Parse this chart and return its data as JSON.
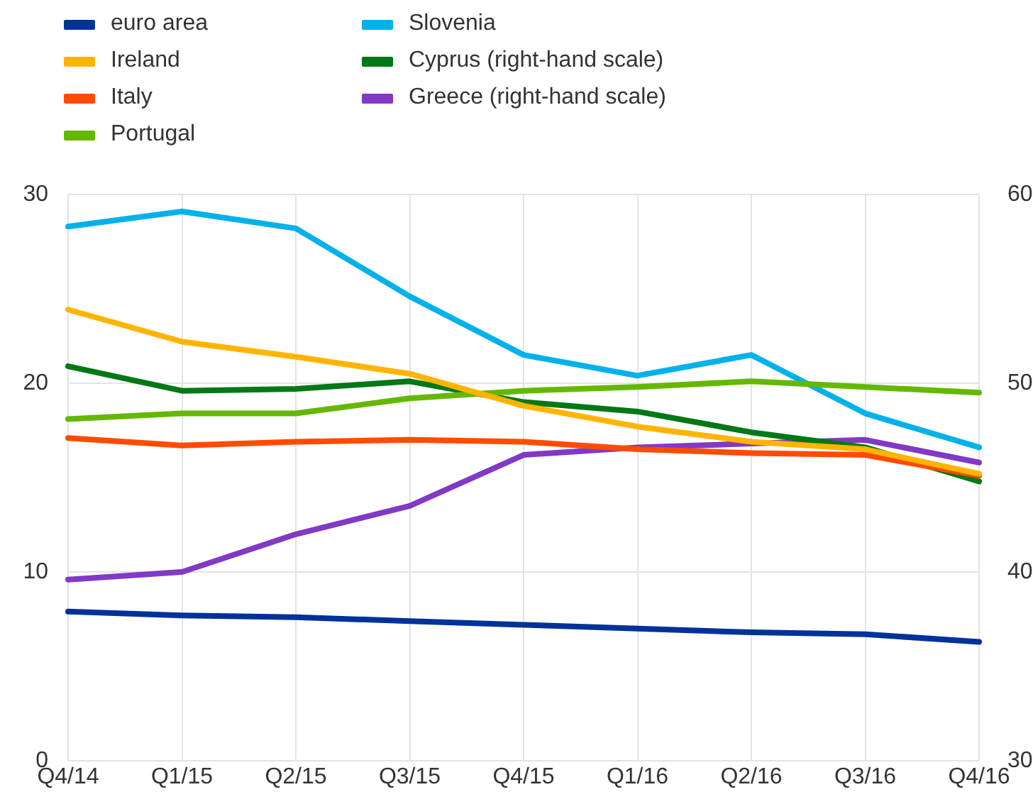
{
  "chart_data": {
    "type": "line",
    "categories": [
      "Q4/14",
      "Q1/15",
      "Q2/15",
      "Q3/15",
      "Q4/15",
      "Q1/16",
      "Q2/16",
      "Q3/16",
      "Q4/16"
    ],
    "series": [
      {
        "name": "euro area",
        "color": "#003299",
        "values": [
          7.9,
          7.7,
          7.6,
          7.4,
          7.2,
          7.0,
          6.8,
          6.7,
          6.3
        ]
      },
      {
        "name": "Ireland",
        "color": "#ffb400",
        "values": [
          23.9,
          22.2,
          21.4,
          20.5,
          18.8,
          17.7,
          16.9,
          16.5,
          15.2
        ]
      },
      {
        "name": "Italy",
        "color": "#ff4b00",
        "values": [
          17.1,
          16.7,
          16.9,
          17.0,
          16.9,
          16.5,
          16.3,
          16.2,
          15.1
        ]
      },
      {
        "name": "Portugal",
        "color": "#65b800",
        "values": [
          18.1,
          18.4,
          18.4,
          19.2,
          19.6,
          19.8,
          20.1,
          19.8,
          19.5
        ]
      },
      {
        "name": "Slovenia",
        "color": "#00b1ea",
        "values": [
          28.3,
          29.1,
          28.2,
          24.6,
          21.5,
          20.4,
          21.5,
          18.4,
          16.6
        ]
      },
      {
        "name": "Cyprus (right-hand scale)",
        "color": "#007816",
        "axis": "y2",
        "values": [
          50.9,
          49.6,
          49.7,
          50.1,
          49.0,
          48.5,
          47.4,
          46.6,
          44.8
        ]
      },
      {
        "name": "Greece (right-hand scale)",
        "color": "#8139c6",
        "axis": "y2",
        "values": [
          39.6,
          40.0,
          42.0,
          43.5,
          46.2,
          46.6,
          46.8,
          47.0,
          45.8
        ]
      }
    ],
    "ylim": [
      0,
      30
    ],
    "yticks": [
      0,
      10,
      20,
      30
    ],
    "y2lim": [
      30,
      60
    ],
    "y2ticks": [
      30,
      40,
      50,
      60
    ],
    "grid": true,
    "legend": "top left",
    "marker": "none",
    "line_style": "solid"
  }
}
